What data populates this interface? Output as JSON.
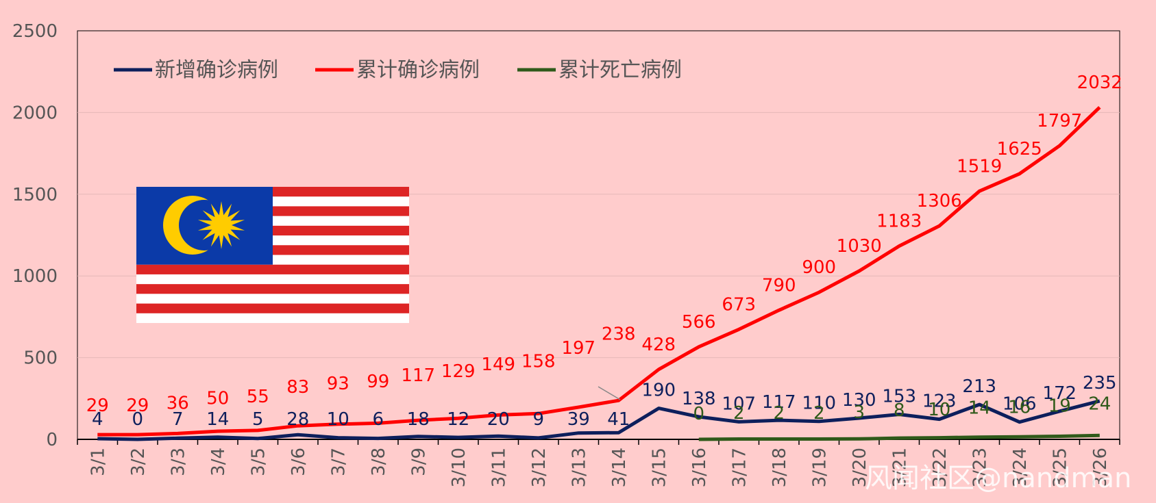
{
  "chart_data": {
    "type": "line",
    "categories": [
      "3/1",
      "3/2",
      "3/3",
      "3/4",
      "3/5",
      "3/6",
      "3/7",
      "3/8",
      "3/9",
      "3/10",
      "3/11",
      "3/12",
      "3/13",
      "3/14",
      "3/15",
      "3/16",
      "3/17",
      "3/18",
      "3/19",
      "3/20",
      "3/21",
      "3/22",
      "3/23",
      "3/24",
      "3/25",
      "3/26"
    ],
    "ylim": [
      0,
      2500
    ],
    "yticks": [
      0,
      500,
      1000,
      1500,
      2000,
      2500
    ],
    "grid": true,
    "legend_position": "top-left",
    "series": [
      {
        "name": "新增确诊病例",
        "color": "#0d1f5c",
        "values": [
          4,
          0,
          7,
          14,
          5,
          28,
          10,
          6,
          18,
          12,
          20,
          9,
          39,
          41,
          190,
          138,
          107,
          117,
          110,
          130,
          153,
          123,
          213,
          106,
          172,
          235
        ]
      },
      {
        "name": "累计确诊病例",
        "color": "#ff0000",
        "values": [
          29,
          29,
          36,
          50,
          55,
          83,
          93,
          99,
          117,
          129,
          149,
          158,
          197,
          238,
          428,
          566,
          673,
          790,
          900,
          1030,
          1183,
          1306,
          1519,
          1625,
          1797,
          2032
        ]
      },
      {
        "name": "累计死亡病例",
        "color": "#2f5a1a",
        "values": [
          null,
          null,
          null,
          null,
          null,
          null,
          null,
          null,
          null,
          null,
          null,
          null,
          null,
          null,
          null,
          0,
          2,
          2,
          2,
          3,
          8,
          10,
          14,
          16,
          19,
          24
        ]
      }
    ]
  },
  "watermark": "风闻社区@nandman",
  "flag_name": "malaysia-flag"
}
